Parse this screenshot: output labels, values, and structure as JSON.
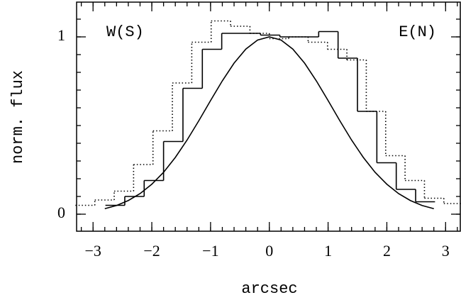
{
  "chart_data": {
    "type": "histogram",
    "xlabel": "arcsec",
    "ylabel": "norm. flux",
    "annotations": [
      "W(S)",
      "E(N)"
    ],
    "color": "#000000",
    "xlim": [
      -3.28,
      3.25
    ],
    "ylim": [
      -0.096,
      1.196
    ],
    "xticks": [
      -3,
      -2,
      -1,
      0,
      1,
      2,
      3
    ],
    "yticks": [
      0,
      1
    ],
    "xticks_minor": [
      -3.2,
      -3.0,
      -2.8,
      -2.6,
      -2.4,
      -2.2,
      -2.0,
      -1.8,
      -1.6,
      -1.4,
      -1.2,
      -1.0,
      -0.8,
      -0.6,
      -0.4,
      -0.2,
      0,
      0.2,
      0.4,
      0.6,
      0.8,
      1.0,
      1.2,
      1.4,
      1.6,
      1.8,
      2.0,
      2.2,
      2.4,
      2.6,
      2.8,
      3.0,
      3.2
    ],
    "yticks_minor": [
      0,
      0.1,
      0.2,
      0.3,
      0.4,
      0.5,
      0.6,
      0.7,
      0.8,
      0.9,
      1.0,
      1.1
    ],
    "series": [
      {
        "type": "histogram",
        "style": "solid",
        "bins": [
          -2.79,
          -2.46,
          -2.13,
          -1.8,
          -1.47,
          -1.14,
          -0.81,
          -0.48,
          -0.15,
          0.18,
          0.51,
          0.84,
          1.17,
          1.5,
          1.83,
          2.16,
          2.49,
          2.82
        ],
        "values": [
          0.05,
          0.1,
          0.19,
          0.41,
          0.71,
          0.93,
          1.02,
          1.02,
          1.01,
          1.0,
          1.0,
          1.03,
          0.88,
          0.58,
          0.29,
          0.14,
          0.07
        ]
      },
      {
        "type": "histogram",
        "style": "dotted",
        "bins": [
          -3.3,
          -2.97,
          -2.64,
          -2.31,
          -1.98,
          -1.65,
          -1.32,
          -0.99,
          -0.66,
          -0.33,
          0,
          0.33,
          0.66,
          0.99,
          1.32,
          1.65,
          1.98,
          2.31,
          2.64,
          2.97,
          3.3
        ],
        "values": [
          0.05,
          0.08,
          0.13,
          0.28,
          0.47,
          0.74,
          0.97,
          1.09,
          1.06,
          1.02,
          0.99,
          1.0,
          0.97,
          0.93,
          0.87,
          0.58,
          0.33,
          0.19,
          0.09,
          0.06
        ]
      },
      {
        "type": "line",
        "style": "solid",
        "x": [
          -2.8,
          -2.6,
          -2.4,
          -2.2,
          -2.0,
          -1.8,
          -1.6,
          -1.4,
          -1.2,
          -1.0,
          -0.8,
          -0.6,
          -0.4,
          -0.2,
          0,
          0.2,
          0.4,
          0.6,
          0.8,
          1.0,
          1.2,
          1.4,
          1.6,
          1.8,
          2.0,
          2.2,
          2.4,
          2.6,
          2.8
        ],
        "values": [
          0.031,
          0.049,
          0.077,
          0.116,
          0.169,
          0.236,
          0.32,
          0.418,
          0.527,
          0.641,
          0.752,
          0.852,
          0.931,
          0.982,
          1,
          0.982,
          0.931,
          0.852,
          0.752,
          0.641,
          0.527,
          0.418,
          0.32,
          0.236,
          0.169,
          0.116,
          0.077,
          0.049,
          0.031
        ]
      }
    ]
  }
}
